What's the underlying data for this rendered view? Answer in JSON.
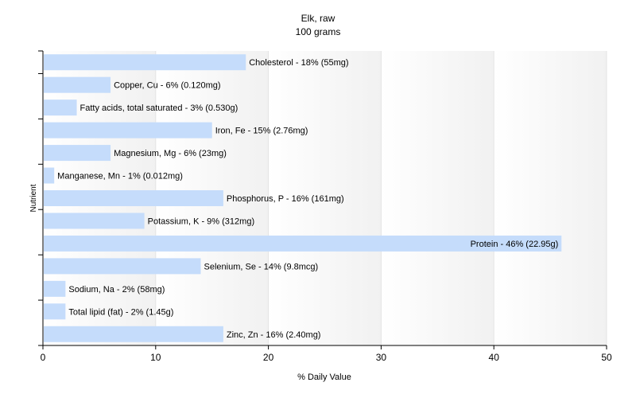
{
  "chart_data": {
    "type": "bar",
    "orientation": "horizontal",
    "title": "Elk, raw",
    "subtitle": "100 grams",
    "xlabel": "% Daily Value",
    "ylabel": "Nutrient",
    "xlim": [
      0,
      50
    ],
    "xticks": [
      0,
      10,
      20,
      30,
      40,
      50
    ],
    "grid": "vertical",
    "bar_color": "#c5dcfb",
    "categories": [
      "Cholesterol",
      "Copper, Cu",
      "Fatty acids, total saturated",
      "Iron, Fe",
      "Magnesium, Mg",
      "Manganese, Mn",
      "Phosphorus, P",
      "Potassium, K",
      "Protein",
      "Selenium, Se",
      "Sodium, Na",
      "Total lipid (fat)",
      "Zinc, Zn"
    ],
    "values": [
      18,
      6,
      3,
      15,
      6,
      1,
      16,
      9,
      46,
      14,
      2,
      2,
      16
    ],
    "data_labels": [
      "Cholesterol - 18% (55mg)",
      "Copper, Cu - 6% (0.120mg)",
      "Fatty acids, total saturated - 3% (0.530g)",
      "Iron, Fe - 15% (2.76mg)",
      "Magnesium, Mg - 6% (23mg)",
      "Manganese, Mn - 1% (0.012mg)",
      "Phosphorus, P - 16% (161mg)",
      "Potassium, K - 9% (312mg)",
      "Protein - 46% (22.95g)",
      "Selenium, Se - 14% (9.8mcg)",
      "Sodium, Na - 2% (58mg)",
      "Total lipid (fat) - 2% (1.45g)",
      "Zinc, Zn - 16% (2.40mg)"
    ]
  }
}
